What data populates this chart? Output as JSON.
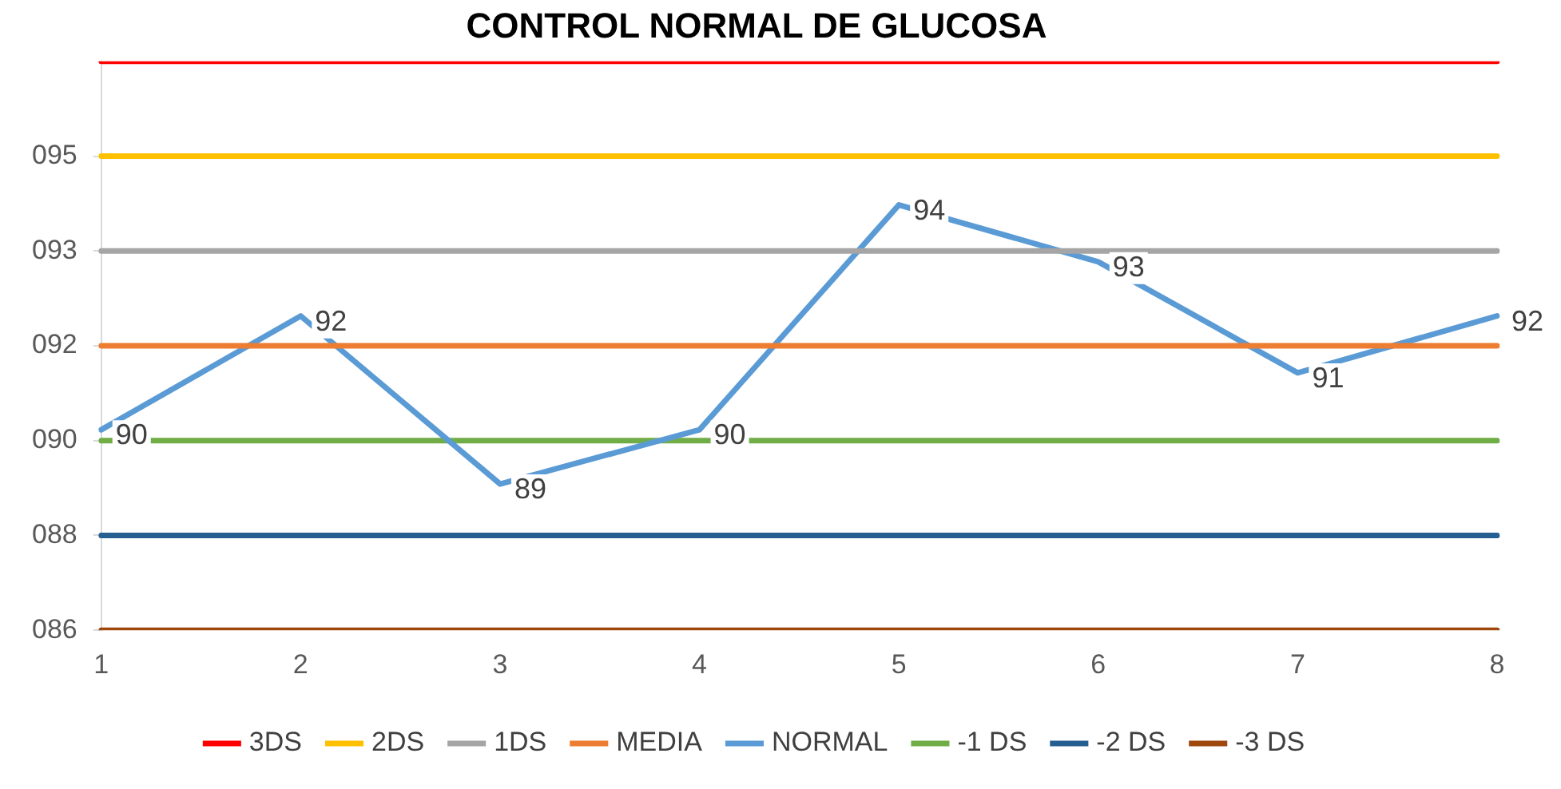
{
  "chart_data": {
    "type": "line",
    "title": "CONTROL NORMAL DE GLUCOSA",
    "categories": [
      "1",
      "2",
      "3",
      "4",
      "5",
      "6",
      "7",
      "8"
    ],
    "series": [
      {
        "name": "3DS",
        "color": "#ff0000",
        "values": [
          96.8,
          96.8,
          96.8,
          96.8,
          96.8,
          96.8,
          96.8,
          96.8
        ]
      },
      {
        "name": "2DS",
        "color": "#ffc000",
        "values": [
          95.05,
          95.05,
          95.05,
          95.05,
          95.05,
          95.05,
          95.05,
          95.05
        ]
      },
      {
        "name": "1DS",
        "color": "#a5a5a5",
        "values": [
          93.3,
          93.3,
          93.3,
          93.3,
          93.3,
          93.3,
          93.3,
          93.3
        ]
      },
      {
        "name": "MEDIA",
        "color": "#ed7d31",
        "values": [
          91.55,
          91.55,
          91.55,
          91.55,
          91.55,
          91.55,
          91.55,
          91.55
        ]
      },
      {
        "name": "NORMAL",
        "color": "#5b9bd5",
        "values": [
          90.0,
          92.1,
          89.0,
          90.0,
          94.15,
          93.1,
          91.05,
          92.1
        ],
        "value_labels": [
          "90",
          "92",
          "89",
          "90",
          "94",
          "93",
          "91",
          "92"
        ]
      },
      {
        "name": "-1 DS",
        "color": "#70ad47",
        "values": [
          89.8,
          89.8,
          89.8,
          89.8,
          89.8,
          89.8,
          89.8,
          89.8
        ]
      },
      {
        "name": "-2 DS",
        "color": "#255e91",
        "values": [
          88.05,
          88.05,
          88.05,
          88.05,
          88.05,
          88.05,
          88.05,
          88.05
        ]
      },
      {
        "name": "-3 DS",
        "color": "#9e480e",
        "values": [
          86.3,
          86.3,
          86.3,
          86.3,
          86.3,
          86.3,
          86.3,
          86.3
        ]
      }
    ],
    "ylim": [
      86.3,
      96.8
    ],
    "yticks": [
      {
        "value": 86.3,
        "label": "086"
      },
      {
        "value": 88.05,
        "label": "088"
      },
      {
        "value": 89.8,
        "label": "090"
      },
      {
        "value": 91.55,
        "label": "092"
      },
      {
        "value": 93.3,
        "label": "093"
      },
      {
        "value": 95.05,
        "label": "095"
      }
    ],
    "grid": false,
    "legend": "bottom",
    "marker": "none",
    "line_style": "solid"
  }
}
